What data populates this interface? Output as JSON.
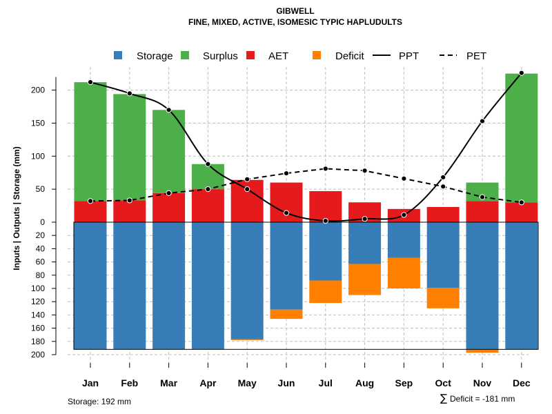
{
  "chart_data": {
    "type": "bar",
    "title": "GIBWELL",
    "subtitle": "FINE, MIXED, ACTIVE, ISOMESIC TYPIC HAPLUDULTS",
    "ylabel": "Inputs | Outputs | Storage    (mm)",
    "categories": [
      "Jan",
      "Feb",
      "Mar",
      "Apr",
      "May",
      "Jun",
      "Jul",
      "Aug",
      "Sep",
      "Oct",
      "Nov",
      "Dec"
    ],
    "upper_ylim": [
      0,
      235
    ],
    "lower_ylim": [
      0,
      200
    ],
    "upper_ticks": [
      "0",
      "50",
      "100",
      "150",
      "200"
    ],
    "lower_ticks": [
      "20",
      "40",
      "60",
      "80",
      "100",
      "120",
      "140",
      "160",
      "180",
      "200"
    ],
    "legend": [
      {
        "key": "storage",
        "label": "Storage",
        "kind": "box",
        "color": "#377eb8"
      },
      {
        "key": "surplus",
        "label": "Surplus",
        "kind": "box",
        "color": "#4daf4a"
      },
      {
        "key": "aet",
        "label": "AET",
        "kind": "box",
        "color": "#e41a1c"
      },
      {
        "key": "deficit",
        "label": "Deficit",
        "kind": "box",
        "color": "#ff7f00"
      },
      {
        "key": "ppt",
        "label": "PPT",
        "kind": "line-solid",
        "color": "#000000"
      },
      {
        "key": "pet",
        "label": "PET",
        "kind": "line-dashed",
        "color": "#000000"
      }
    ],
    "series": [
      {
        "name": "AET",
        "values": [
          32,
          33,
          44,
          50,
          64,
          60,
          47,
          30,
          20,
          23,
          32,
          30
        ]
      },
      {
        "name": "Surplus",
        "values": [
          180,
          161,
          126,
          38,
          0,
          0,
          0,
          0,
          0,
          0,
          28,
          195
        ]
      },
      {
        "name": "PPT",
        "values": [
          212,
          195,
          170,
          88,
          50,
          14,
          2,
          5,
          11,
          68,
          153,
          226
        ]
      },
      {
        "name": "PET",
        "values": [
          32,
          33,
          44,
          50,
          65,
          74,
          81,
          78,
          66,
          54,
          38,
          30
        ]
      },
      {
        "name": "Storage",
        "values": [
          192,
          192,
          192,
          192,
          177,
          132,
          88,
          63,
          54,
          99,
          192,
          192
        ]
      },
      {
        "name": "Deficit",
        "values": [
          0,
          0,
          0,
          0,
          1,
          14,
          34,
          47,
          46,
          31,
          5,
          0
        ]
      }
    ],
    "storage_capacity": 192
  },
  "footer": {
    "storage": "Storage: 192 mm",
    "deficit_symbol": "∑",
    "deficit": "Deficit = -181 mm"
  },
  "colors": {
    "storage": "#377eb8",
    "surplus": "#4daf4a",
    "aet": "#e41a1c",
    "deficit": "#ff7f00",
    "grid": "#bdbdbd"
  }
}
